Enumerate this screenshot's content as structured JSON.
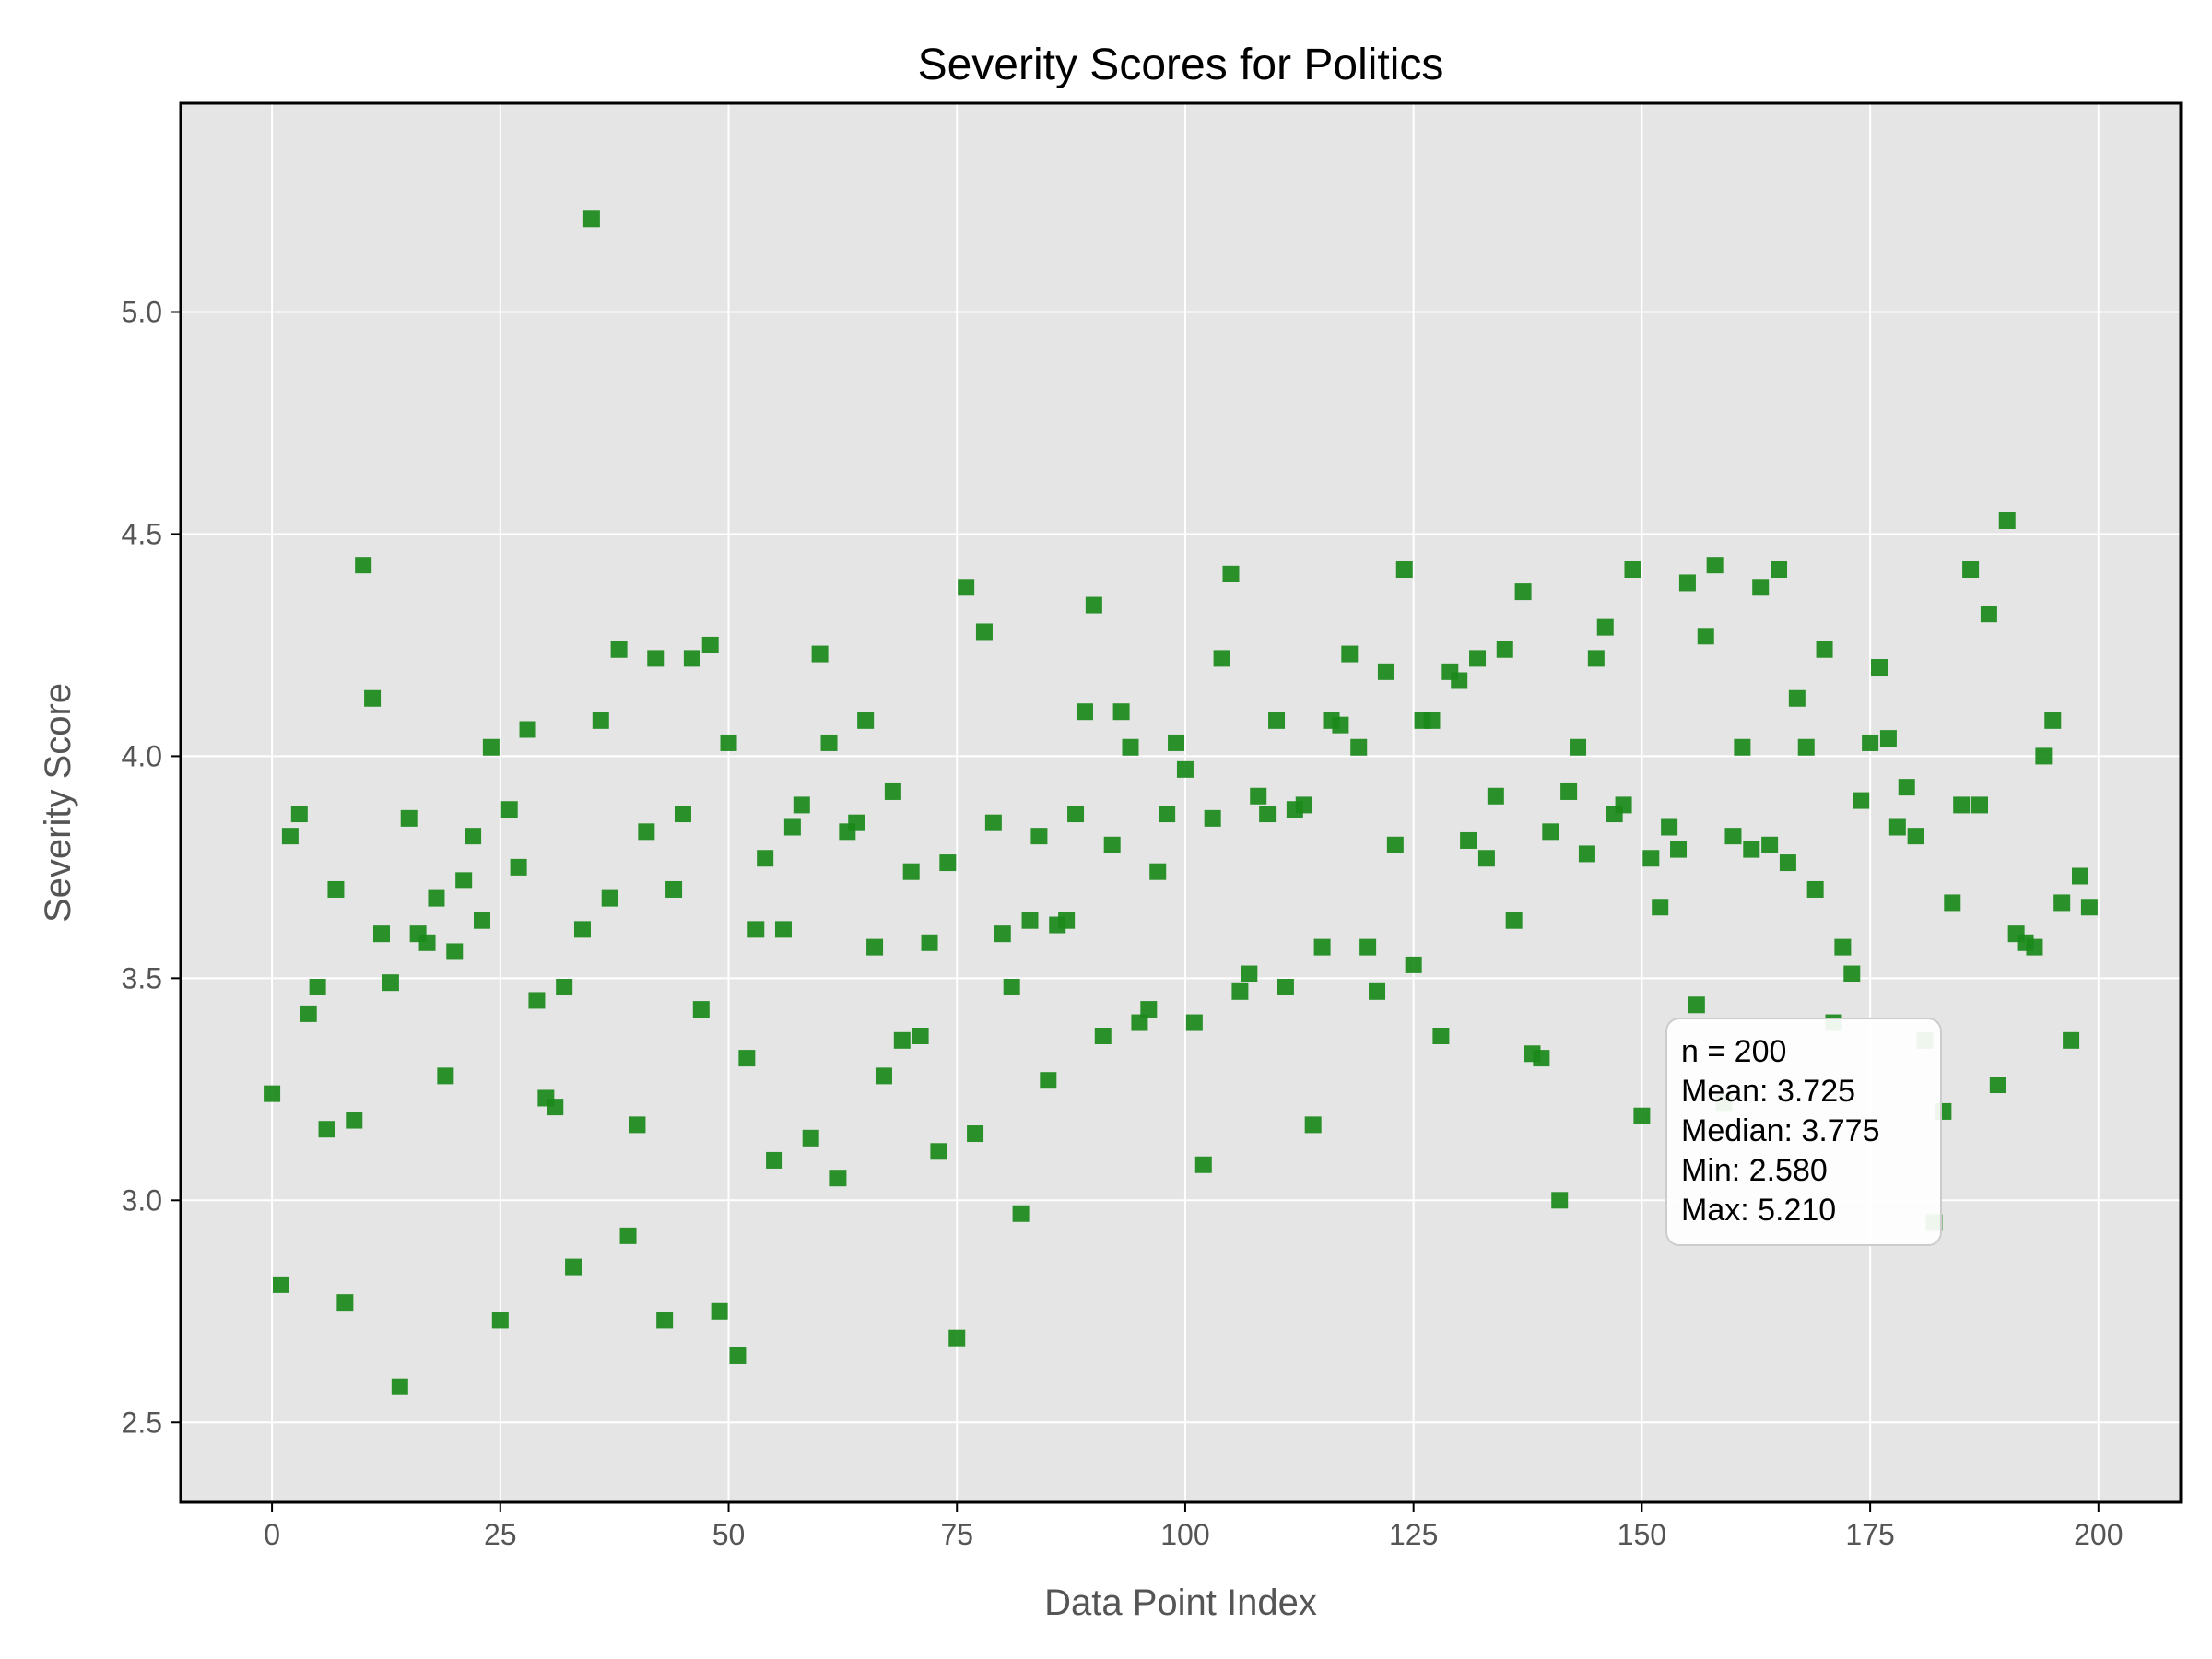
{
  "chart_data": {
    "type": "scatter",
    "title": "Severity Scores for Politics",
    "xlabel": "Data Point Index",
    "ylabel": "Severity Score",
    "xlim": [
      -10,
      209
    ],
    "ylim": [
      2.32,
      5.47
    ],
    "xticks": [
      0,
      25,
      50,
      75,
      100,
      125,
      150,
      175,
      200
    ],
    "yticks": [
      2.5,
      3.0,
      3.5,
      4.0,
      4.5,
      5.0
    ],
    "ytick_labels": [
      "2.5",
      "3.0",
      "3.5",
      "4.0",
      "4.5",
      "5.0"
    ],
    "grid": true,
    "marker": "square",
    "colors": {
      "marker": "#1a8a1a",
      "background": "#e5e5e5",
      "grid": "#ffffff",
      "frame": "#000000"
    },
    "stats": {
      "lines": [
        "n = 200",
        "Mean: 3.725",
        "Median: 3.775",
        "Min: 2.580",
        "Max: 5.210"
      ],
      "placement": "lower-right"
    },
    "y": [
      3.24,
      2.81,
      3.82,
      3.87,
      3.42,
      3.48,
      3.16,
      3.7,
      2.77,
      3.18,
      4.43,
      4.13,
      3.6,
      3.49,
      2.58,
      3.86,
      3.6,
      3.58,
      3.68,
      3.28,
      3.56,
      3.72,
      3.82,
      3.63,
      4.02,
      2.73,
      3.88,
      3.75,
      4.06,
      3.45,
      3.23,
      3.21,
      3.48,
      2.85,
      3.61,
      5.21,
      4.08,
      3.68,
      4.24,
      2.92,
      3.17,
      3.83,
      4.22,
      2.73,
      3.7,
      3.87,
      4.22,
      3.43,
      4.25,
      2.75,
      4.03,
      2.65,
      3.32,
      3.61,
      3.77,
      3.09,
      3.61,
      3.84,
      3.89,
      3.14,
      4.23,
      4.03,
      3.05,
      3.83,
      3.85,
      4.08,
      3.57,
      3.28,
      3.92,
      3.36,
      3.74,
      3.37,
      3.58,
      3.11,
      3.76,
      2.69,
      4.38,
      3.15,
      4.28,
      3.85,
      3.6,
      3.48,
      2.97,
      3.63,
      3.82,
      3.27,
      3.62,
      3.63,
      3.87,
      4.1,
      4.34,
      3.37,
      3.8,
      4.1,
      4.02,
      3.4,
      3.43,
      3.74,
      3.87,
      4.03,
      3.97,
      3.4,
      3.08,
      3.86,
      4.22,
      4.41,
      3.47,
      3.51,
      3.91,
      3.87,
      4.08,
      3.48,
      3.88,
      3.89,
      3.17,
      3.57,
      4.08,
      4.07,
      4.23,
      4.02,
      3.57,
      3.47,
      4.19,
      3.8,
      4.42,
      3.53,
      4.08,
      4.08,
      3.37,
      4.19,
      4.17,
      3.81,
      4.22,
      3.77,
      3.91,
      4.24,
      3.63,
      4.37,
      3.33,
      3.32,
      3.83,
      3.0,
      3.92,
      4.02,
      3.78,
      4.22,
      4.29,
      3.87,
      3.89,
      4.42,
      3.19,
      3.77,
      3.66,
      3.84,
      3.79,
      4.39,
      3.44,
      4.27,
      4.43,
      3.22,
      3.82,
      4.02,
      3.79,
      4.38,
      3.8,
      4.42,
      3.76,
      4.13,
      4.02,
      3.7,
      4.24,
      3.4,
      3.57,
      3.51,
      3.9,
      4.03,
      4.2,
      4.04,
      3.84,
      3.93,
      3.82,
      3.36,
      2.95,
      3.2,
      3.67,
      3.89,
      4.42,
      3.89,
      4.32,
      3.26,
      4.53,
      3.6,
      3.58,
      3.57,
      4.0,
      4.08,
      3.67,
      3.36,
      3.73,
      3.66
    ]
  }
}
